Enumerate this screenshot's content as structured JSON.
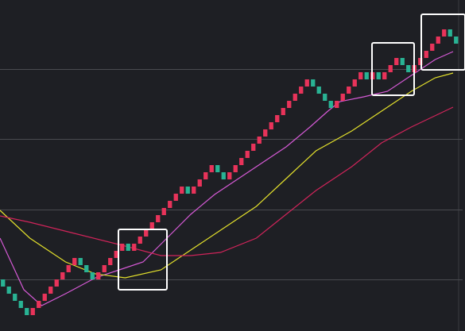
{
  "chart_data": {
    "type": "renko",
    "xlim": [
      0,
      78
    ],
    "ylim": [
      0,
      417
    ],
    "yticks": [
      65,
      153,
      242,
      330
    ],
    "grid": true,
    "bricks": {
      "up_color": "#e8335a",
      "down_color": "#29b394",
      "values": [
        65,
        56,
        47,
        38,
        29,
        20,
        29,
        38,
        47,
        56,
        65,
        74,
        83,
        92,
        83,
        74,
        65,
        74,
        83,
        92,
        101,
        110,
        101,
        110,
        119,
        128,
        137,
        146,
        155,
        164,
        173,
        182,
        173,
        182,
        191,
        200,
        209,
        200,
        191,
        200,
        209,
        218,
        227,
        236,
        245,
        254,
        263,
        272,
        281,
        290,
        299,
        308,
        317,
        308,
        299,
        290,
        281,
        290,
        299,
        308,
        317,
        326,
        317,
        326,
        317,
        326,
        335,
        344,
        335,
        326,
        335,
        344,
        353,
        362,
        371,
        380,
        371,
        362
      ]
    },
    "series": [
      {
        "color": "#d65ad6",
        "x": [
          0,
          4,
          7,
          11,
          16,
          20,
          24,
          28,
          32,
          36,
          40,
          44,
          48,
          52,
          55,
          57,
          61,
          65,
          69,
          73,
          76
        ],
        "values": [
          117,
          52,
          32,
          47,
          67,
          77,
          87,
          117,
          147,
          172,
          192,
          212,
          232,
          257,
          277,
          289,
          295,
          302,
          322,
          342,
          352
        ]
      },
      {
        "color": "#e3e02c",
        "x": [
          0,
          5,
          11,
          16,
          21,
          27,
          32,
          37,
          43,
          48,
          53,
          59,
          64,
          69,
          73,
          76
        ],
        "values": [
          152,
          117,
          87,
          72,
          67,
          77,
          102,
          127,
          157,
          192,
          227,
          252,
          277,
          302,
          319,
          325
        ]
      },
      {
        "color": "#d0245a",
        "x": [
          0,
          5,
          13,
          21,
          27,
          32,
          37,
          43,
          48,
          53,
          59,
          64,
          69,
          76
        ],
        "values": [
          145,
          137,
          122,
          107,
          95,
          95,
          99,
          117,
          147,
          177,
          207,
          237,
          257,
          282
        ]
      }
    ]
  }
}
